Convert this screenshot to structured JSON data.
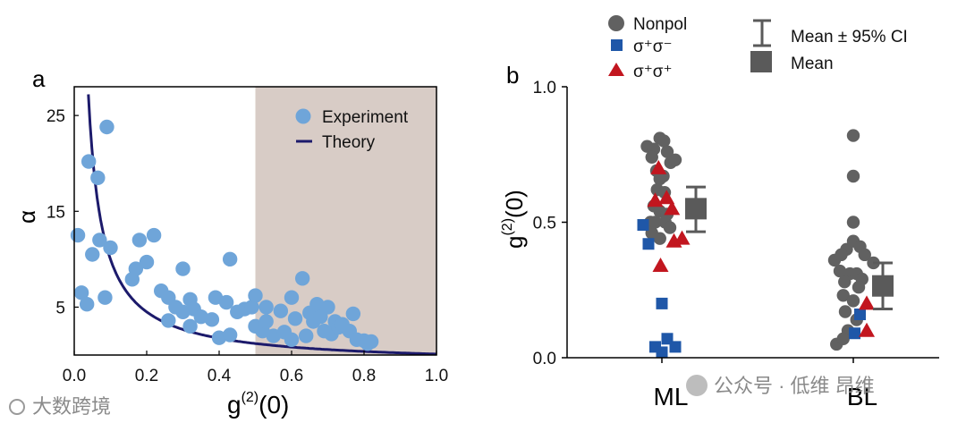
{
  "watermarks": {
    "left": "大数跨境",
    "right": "公众号 · 低维 昂维"
  },
  "colors": {
    "experiment": "#6fa5d9",
    "theory": "#1c1a6b",
    "shade": "#d8ccc6",
    "nonpol": "#616161",
    "sigma_opposite": "#1f57a8",
    "sigma_same": "#c2161f",
    "stat": "#5a5a5a"
  },
  "chart_data": [
    {
      "panel": "a",
      "type": "scatter",
      "xlabel_main": "g",
      "xlabel_sup": "(2)",
      "xlabel_tail": "(0)",
      "ylabel": "α",
      "xlim": [
        0,
        1.0
      ],
      "ylim": [
        0,
        28
      ],
      "xticks": [
        "0.0",
        "0.2",
        "0.4",
        "0.6",
        "0.8",
        "1.0"
      ],
      "xtick_values": [
        0,
        0.2,
        0.4,
        0.6,
        0.8,
        1.0
      ],
      "yticks": [
        "5",
        "15",
        "25"
      ],
      "ytick_values": [
        5,
        15,
        25
      ],
      "shaded_x_range": [
        0.5,
        1.0
      ],
      "legend": [
        {
          "key": "experiment",
          "label": "Experiment"
        },
        {
          "key": "theory",
          "label": "Theory"
        }
      ],
      "theory_formula": "alpha = 1.1 / g - 1",
      "experiment_points": [
        [
          0.01,
          12.5
        ],
        [
          0.02,
          6.5
        ],
        [
          0.04,
          20.2
        ],
        [
          0.035,
          5.3
        ],
        [
          0.05,
          10.5
        ],
        [
          0.065,
          18.5
        ],
        [
          0.07,
          12.0
        ],
        [
          0.085,
          6.0
        ],
        [
          0.09,
          23.8
        ],
        [
          0.1,
          11.2
        ],
        [
          0.16,
          7.9
        ],
        [
          0.17,
          9.0
        ],
        [
          0.18,
          12.0
        ],
        [
          0.2,
          9.7
        ],
        [
          0.22,
          12.5
        ],
        [
          0.24,
          6.7
        ],
        [
          0.26,
          6.0
        ],
        [
          0.26,
          3.6
        ],
        [
          0.28,
          5.0
        ],
        [
          0.3,
          4.5
        ],
        [
          0.3,
          9.0
        ],
        [
          0.32,
          5.8
        ],
        [
          0.33,
          4.8
        ],
        [
          0.32,
          3.0
        ],
        [
          0.35,
          4.0
        ],
        [
          0.38,
          3.7
        ],
        [
          0.39,
          6.0
        ],
        [
          0.4,
          1.8
        ],
        [
          0.42,
          5.5
        ],
        [
          0.43,
          10.0
        ],
        [
          0.43,
          2.1
        ],
        [
          0.45,
          4.5
        ],
        [
          0.47,
          4.8
        ],
        [
          0.49,
          5.0
        ],
        [
          0.5,
          6.2
        ],
        [
          0.5,
          3.0
        ],
        [
          0.52,
          2.5
        ],
        [
          0.53,
          3.5
        ],
        [
          0.53,
          5.0
        ],
        [
          0.55,
          2.0
        ],
        [
          0.57,
          4.6
        ],
        [
          0.58,
          2.4
        ],
        [
          0.6,
          6.0
        ],
        [
          0.6,
          1.6
        ],
        [
          0.61,
          3.8
        ],
        [
          0.63,
          8.0
        ],
        [
          0.64,
          2.0
        ],
        [
          0.65,
          4.4
        ],
        [
          0.66,
          3.5
        ],
        [
          0.67,
          5.3
        ],
        [
          0.68,
          4.0
        ],
        [
          0.69,
          2.5
        ],
        [
          0.7,
          5.0
        ],
        [
          0.71,
          2.2
        ],
        [
          0.72,
          3.5
        ],
        [
          0.73,
          2.9
        ],
        [
          0.74,
          3.2
        ],
        [
          0.76,
          2.5
        ],
        [
          0.77,
          4.3
        ],
        [
          0.78,
          1.6
        ],
        [
          0.8,
          1.5
        ],
        [
          0.81,
          1.2
        ],
        [
          0.82,
          1.4
        ]
      ]
    },
    {
      "panel": "b",
      "type": "scatter",
      "ylabel_main": "g",
      "ylabel_sup": "(2)",
      "ylabel_tail": "(0)",
      "categories": [
        "ML",
        "BL"
      ],
      "ylim": [
        0,
        1.0
      ],
      "yticks": [
        "0.0",
        "0.5",
        "1.0"
      ],
      "ytick_values": [
        0,
        0.5,
        1.0
      ],
      "legend": [
        {
          "key": "nonpol",
          "label": "Nonpol",
          "marker": "circle"
        },
        {
          "key": "sigma_opposite",
          "label": "σ⁺σ⁻",
          "marker": "square"
        },
        {
          "key": "sigma_same",
          "label": "σ⁺σ⁺",
          "marker": "triangle"
        },
        {
          "key": "ci",
          "label": "Mean ± 95% CI",
          "marker": "errorbar"
        },
        {
          "key": "mean",
          "label": "Mean",
          "marker": "bigsquare"
        }
      ],
      "series": [
        {
          "name": "Nonpol",
          "key": "nonpol",
          "points": [
            {
              "cat": "ML",
              "dx": -0.22,
              "y": 0.78
            },
            {
              "cat": "ML",
              "dx": -0.12,
              "y": 0.77
            },
            {
              "cat": "ML",
              "dx": -0.03,
              "y": 0.81
            },
            {
              "cat": "ML",
              "dx": 0.03,
              "y": 0.8
            },
            {
              "cat": "ML",
              "dx": -0.15,
              "y": 0.74
            },
            {
              "cat": "ML",
              "dx": 0.08,
              "y": 0.76
            },
            {
              "cat": "ML",
              "dx": 0.13,
              "y": 0.72
            },
            {
              "cat": "ML",
              "dx": 0.2,
              "y": 0.73
            },
            {
              "cat": "ML",
              "dx": -0.08,
              "y": 0.69
            },
            {
              "cat": "ML",
              "dx": 0.02,
              "y": 0.67
            },
            {
              "cat": "ML",
              "dx": -0.03,
              "y": 0.66
            },
            {
              "cat": "ML",
              "dx": -0.07,
              "y": 0.62
            },
            {
              "cat": "ML",
              "dx": 0.04,
              "y": 0.61
            },
            {
              "cat": "ML",
              "dx": -0.12,
              "y": 0.56
            },
            {
              "cat": "ML",
              "dx": -0.03,
              "y": 0.54
            },
            {
              "cat": "ML",
              "dx": 0.08,
              "y": 0.53
            },
            {
              "cat": "ML",
              "dx": -0.17,
              "y": 0.5
            },
            {
              "cat": "ML",
              "dx": -0.1,
              "y": 0.5
            },
            {
              "cat": "ML",
              "dx": 0.05,
              "y": 0.5
            },
            {
              "cat": "ML",
              "dx": -0.15,
              "y": 0.46
            },
            {
              "cat": "ML",
              "dx": -0.03,
              "y": 0.44
            },
            {
              "cat": "ML",
              "dx": 0.12,
              "y": 0.48
            },
            {
              "cat": "BL",
              "dx": 0.0,
              "y": 0.82
            },
            {
              "cat": "BL",
              "dx": 0.0,
              "y": 0.67
            },
            {
              "cat": "BL",
              "dx": 0.0,
              "y": 0.5
            },
            {
              "cat": "BL",
              "dx": -0.1,
              "y": 0.4
            },
            {
              "cat": "BL",
              "dx": 0.0,
              "y": 0.43
            },
            {
              "cat": "BL",
              "dx": 0.1,
              "y": 0.41
            },
            {
              "cat": "BL",
              "dx": -0.28,
              "y": 0.36
            },
            {
              "cat": "BL",
              "dx": -0.18,
              "y": 0.38
            },
            {
              "cat": "BL",
              "dx": 0.17,
              "y": 0.38
            },
            {
              "cat": "BL",
              "dx": 0.3,
              "y": 0.35
            },
            {
              "cat": "BL",
              "dx": -0.2,
              "y": 0.32
            },
            {
              "cat": "BL",
              "dx": -0.05,
              "y": 0.31
            },
            {
              "cat": "BL",
              "dx": 0.05,
              "y": 0.31
            },
            {
              "cat": "BL",
              "dx": 0.13,
              "y": 0.29
            },
            {
              "cat": "BL",
              "dx": -0.13,
              "y": 0.28
            },
            {
              "cat": "BL",
              "dx": 0.08,
              "y": 0.26
            },
            {
              "cat": "BL",
              "dx": -0.15,
              "y": 0.23
            },
            {
              "cat": "BL",
              "dx": 0.0,
              "y": 0.21
            },
            {
              "cat": "BL",
              "dx": -0.12,
              "y": 0.17
            },
            {
              "cat": "BL",
              "dx": 0.05,
              "y": 0.14
            },
            {
              "cat": "BL",
              "dx": -0.08,
              "y": 0.1
            },
            {
              "cat": "BL",
              "dx": -0.25,
              "y": 0.05
            },
            {
              "cat": "BL",
              "dx": -0.15,
              "y": 0.07
            }
          ]
        },
        {
          "name": "σ⁺σ⁻",
          "key": "sigma_opposite",
          "points": [
            {
              "cat": "ML",
              "dx": -0.28,
              "y": 0.49
            },
            {
              "cat": "ML",
              "dx": -0.2,
              "y": 0.42
            },
            {
              "cat": "ML",
              "dx": 0.0,
              "y": 0.2
            },
            {
              "cat": "ML",
              "dx": -0.1,
              "y": 0.04
            },
            {
              "cat": "ML",
              "dx": 0.0,
              "y": 0.02
            },
            {
              "cat": "ML",
              "dx": 0.08,
              "y": 0.07
            },
            {
              "cat": "ML",
              "dx": 0.2,
              "y": 0.04
            },
            {
              "cat": "BL",
              "dx": 0.1,
              "y": 0.16
            },
            {
              "cat": "BL",
              "dx": 0.02,
              "y": 0.09
            }
          ]
        },
        {
          "name": "σ⁺σ⁺",
          "key": "sigma_same",
          "points": [
            {
              "cat": "ML",
              "dx": -0.05,
              "y": 0.7
            },
            {
              "cat": "ML",
              "dx": -0.1,
              "y": 0.58
            },
            {
              "cat": "ML",
              "dx": 0.07,
              "y": 0.59
            },
            {
              "cat": "ML",
              "dx": 0.15,
              "y": 0.55
            },
            {
              "cat": "ML",
              "dx": 0.18,
              "y": 0.43
            },
            {
              "cat": "ML",
              "dx": 0.3,
              "y": 0.44
            },
            {
              "cat": "ML",
              "dx": -0.02,
              "y": 0.34
            },
            {
              "cat": "BL",
              "dx": 0.2,
              "y": 0.2
            },
            {
              "cat": "BL",
              "dx": 0.2,
              "y": 0.1
            }
          ]
        }
      ],
      "summary": [
        {
          "cat": "ML",
          "mean": 0.55,
          "ci_low": 0.465,
          "ci_high": 0.63
        },
        {
          "cat": "BL",
          "mean": 0.265,
          "ci_low": 0.18,
          "ci_high": 0.35
        }
      ]
    }
  ]
}
